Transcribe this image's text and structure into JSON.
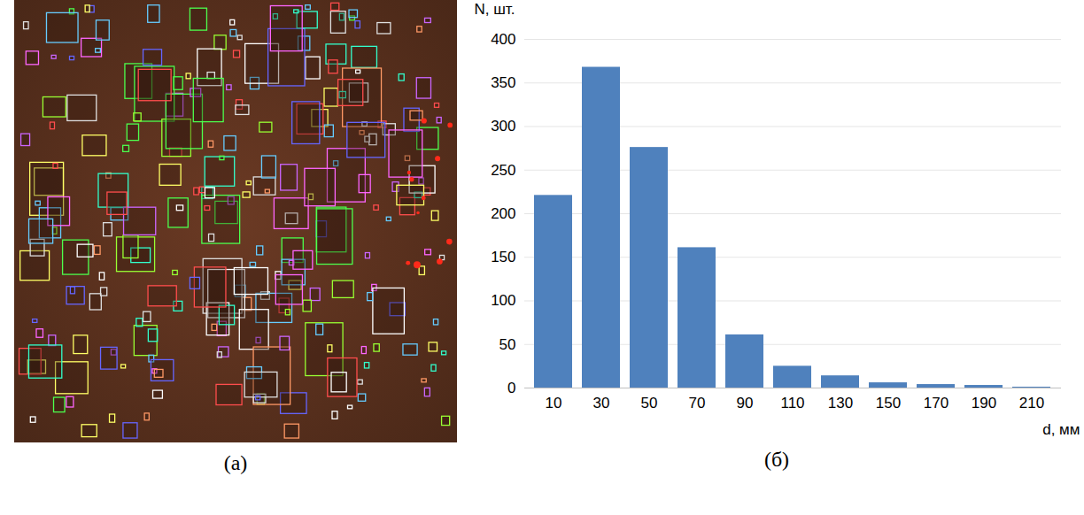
{
  "panel_labels": [
    "(а)",
    "(б)"
  ],
  "chart_data": {
    "type": "bar",
    "categories": [
      10,
      30,
      50,
      70,
      90,
      110,
      130,
      150,
      170,
      190,
      210
    ],
    "values": [
      221,
      368,
      276,
      161,
      61,
      25,
      14,
      6,
      4,
      3,
      1
    ],
    "color": "#4f81bd",
    "x_label": "d, мм",
    "y_label": "N, шт.",
    "ylim": [
      0,
      400
    ],
    "yticks": [
      0,
      50,
      100,
      150,
      200,
      250,
      300,
      350,
      400
    ],
    "grid": true
  }
}
